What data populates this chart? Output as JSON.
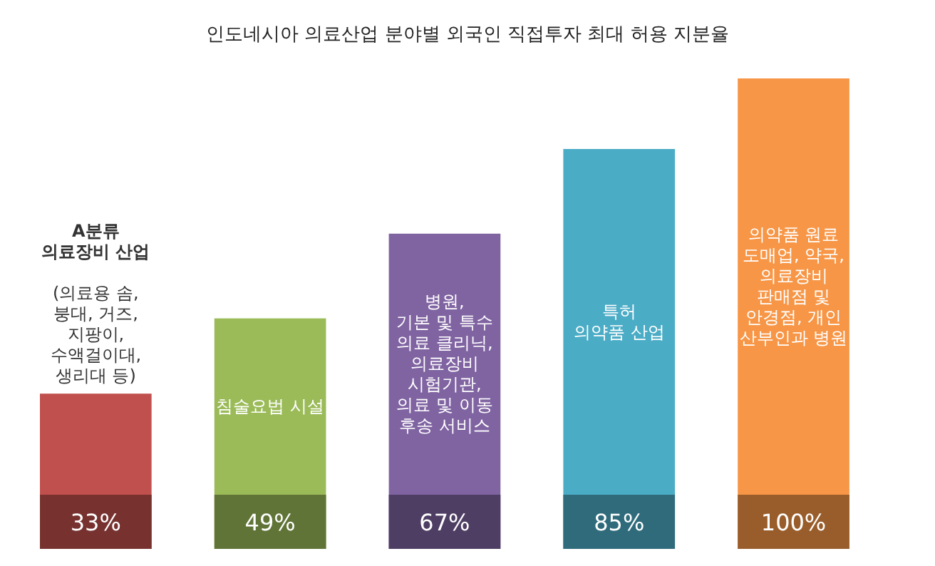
{
  "chart_data": {
    "type": "bar",
    "title": "인도네시아 의료산업 분야별 외국인 직접투자 최대 허용 지분율",
    "categories": [
      "**A분류\n의료장비 산업**\n\n(의료용 솜,\n붕대, 거즈,\n지팡이,\n수액걸이대,\n생리대 등)",
      "침술요법 시설",
      "병원,\n기본 및 특수\n의료 클리닉,\n의료장비\n시험기관,\n의료 및 이동\n후송 서비스",
      "특허\n의약품 산업",
      "의약품 원료\n도매업, 약국,\n의료장비\n판매점 및\n안경점, 개인\n산부인과 병원"
    ],
    "values": [
      33,
      49,
      67,
      85,
      100
    ],
    "value_labels": [
      "33%",
      "49%",
      "67%",
      "85%",
      "100%"
    ],
    "colors": [
      "#c0504d",
      "#9bbb59",
      "#8064a2",
      "#4bacc6",
      "#f79646"
    ]
  }
}
